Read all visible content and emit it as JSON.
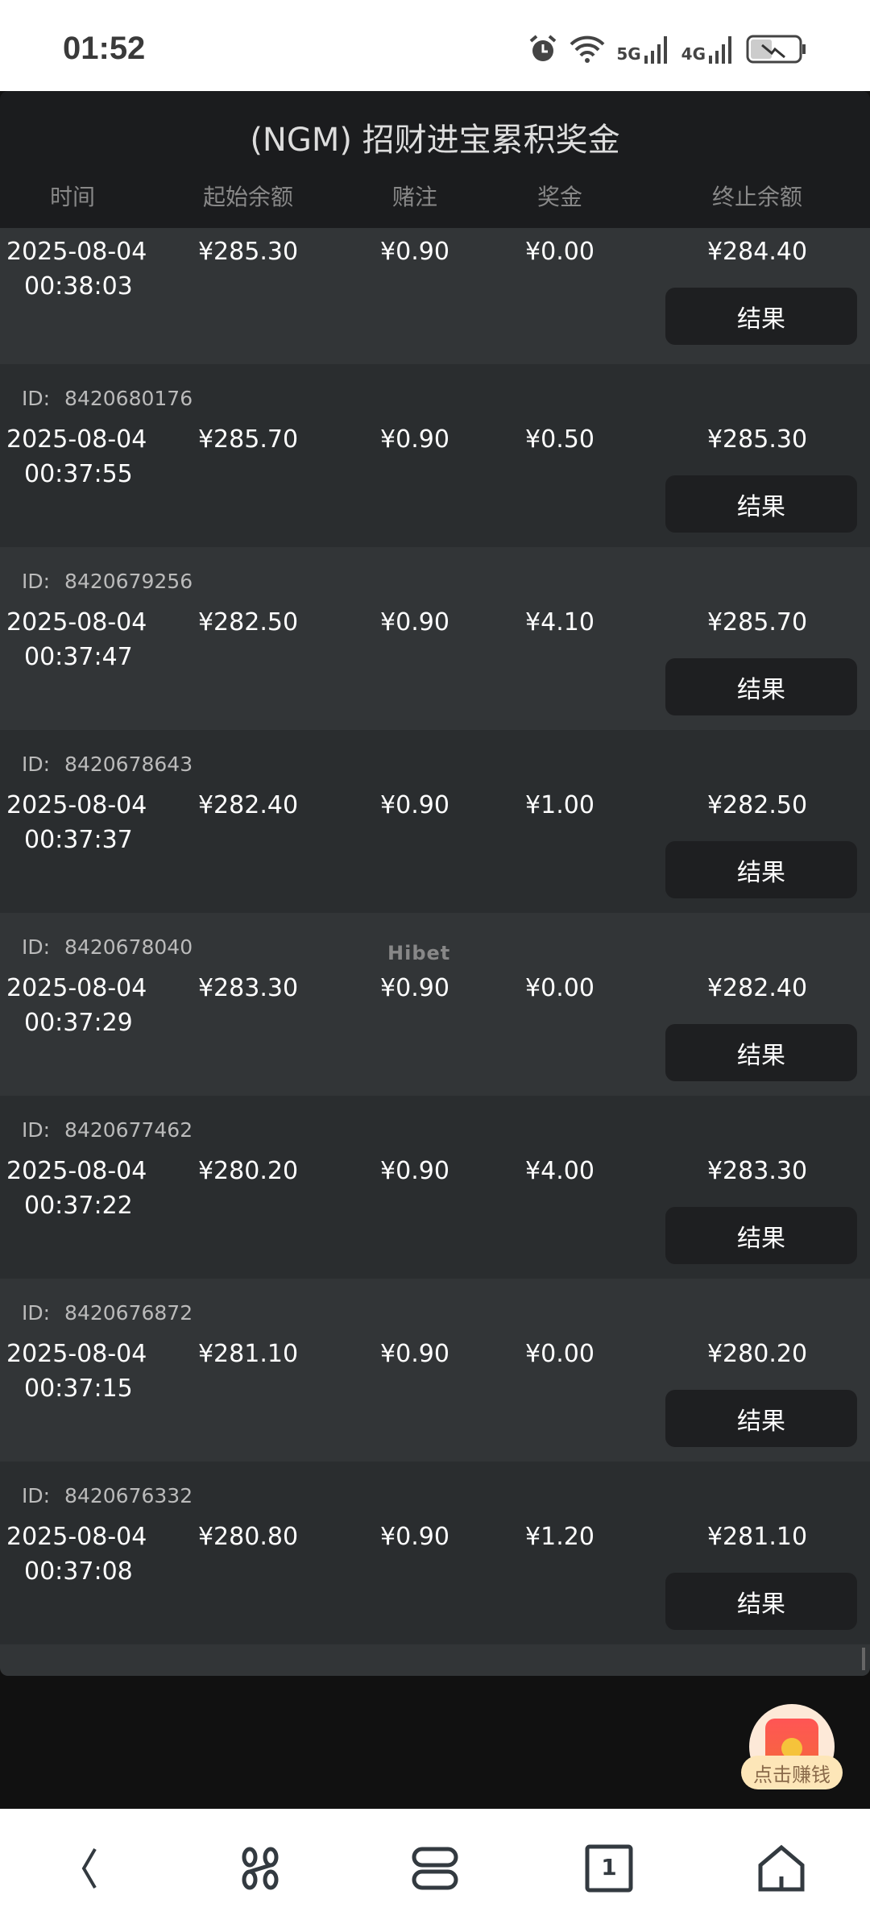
{
  "status_bar": {
    "time": "01:52",
    "network_1": "5G",
    "network_2": "4G",
    "icons": [
      "alarm-icon",
      "wifi-icon",
      "signal-icon",
      "signal-icon",
      "battery-charging-icon"
    ]
  },
  "header": {
    "title": "(NGM) 招财进宝累积奖金",
    "columns": [
      "时间",
      "起始余额",
      "赌注",
      "奖金",
      "终止余额"
    ]
  },
  "id_label": "ID:",
  "result_label": "结果",
  "watermark": "Hibet",
  "rows": [
    {
      "id": null,
      "date": "2025-08-04",
      "time": "00:38:03",
      "start": "¥285.30",
      "bet": "¥0.90",
      "prize": "¥0.00",
      "end": "¥284.40"
    },
    {
      "id": "8420680176",
      "date": "2025-08-04",
      "time": "00:37:55",
      "start": "¥285.70",
      "bet": "¥0.90",
      "prize": "¥0.50",
      "end": "¥285.30"
    },
    {
      "id": "8420679256",
      "date": "2025-08-04",
      "time": "00:37:47",
      "start": "¥282.50",
      "bet": "¥0.90",
      "prize": "¥4.10",
      "end": "¥285.70"
    },
    {
      "id": "8420678643",
      "date": "2025-08-04",
      "time": "00:37:37",
      "start": "¥282.40",
      "bet": "¥0.90",
      "prize": "¥1.00",
      "end": "¥282.50"
    },
    {
      "id": "8420678040",
      "date": "2025-08-04",
      "time": "00:37:29",
      "start": "¥283.30",
      "bet": "¥0.90",
      "prize": "¥0.00",
      "end": "¥282.40"
    },
    {
      "id": "8420677462",
      "date": "2025-08-04",
      "time": "00:37:22",
      "start": "¥280.20",
      "bet": "¥0.90",
      "prize": "¥4.00",
      "end": "¥283.30"
    },
    {
      "id": "8420676872",
      "date": "2025-08-04",
      "time": "00:37:15",
      "start": "¥281.10",
      "bet": "¥0.90",
      "prize": "¥0.00",
      "end": "¥280.20"
    },
    {
      "id": "8420676332",
      "date": "2025-08-04",
      "time": "00:37:08",
      "start": "¥280.80",
      "bet": "¥0.90",
      "prize": "¥1.20",
      "end": "¥281.10"
    }
  ],
  "floating_badge": {
    "label": "点击赚钱",
    "icon": "red-envelope-icon"
  },
  "nav_bar": {
    "tab_count": "1",
    "items": [
      "back-icon",
      "apps-icon",
      "menu-icon",
      "tabs-icon",
      "home-icon"
    ]
  },
  "colors": {
    "panel": "#1b1c1e",
    "row_light": "#323537",
    "row_dark": "#2a2d2f",
    "button": "#1e1f21"
  }
}
